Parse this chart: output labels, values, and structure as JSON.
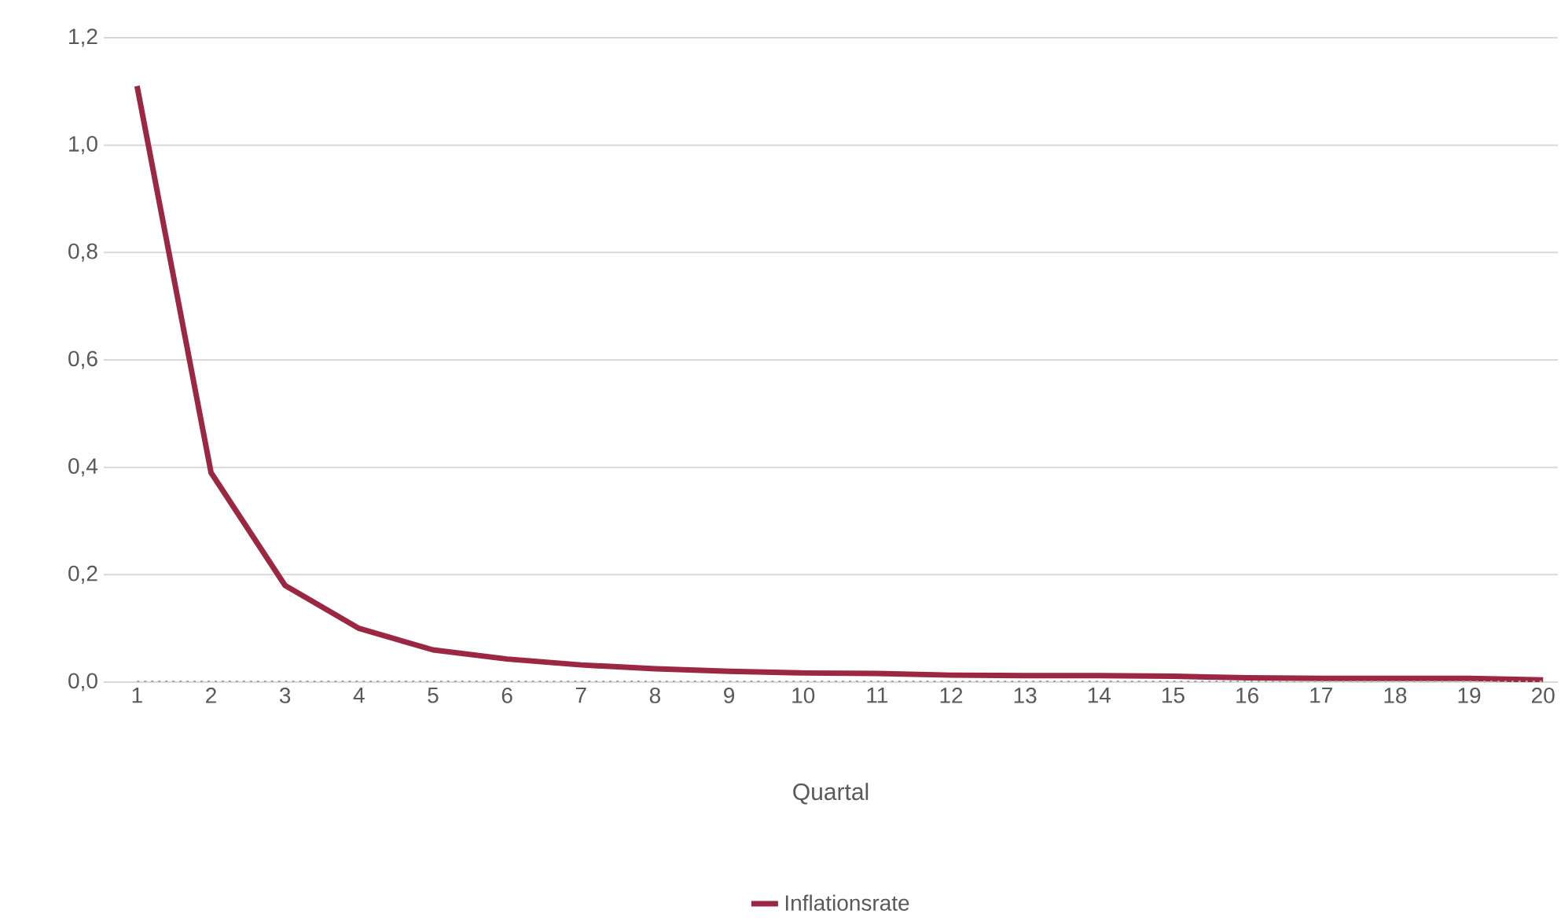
{
  "chart_data": {
    "type": "line",
    "xlabel": "Quartal",
    "categories": [
      "1",
      "2",
      "3",
      "4",
      "5",
      "6",
      "7",
      "8",
      "9",
      "10",
      "11",
      "12",
      "13",
      "14",
      "15",
      "16",
      "17",
      "18",
      "19",
      "20"
    ],
    "series": [
      {
        "name": "Inflationsrate",
        "color": "#9b2743",
        "values": [
          1.11,
          0.39,
          0.18,
          0.1,
          0.06,
          0.043,
          0.032,
          0.025,
          0.02,
          0.017,
          0.016,
          0.013,
          0.012,
          0.012,
          0.011,
          0.008,
          0.007,
          0.007,
          0.007,
          0.004
        ]
      }
    ],
    "ylim": [
      0,
      1.2
    ],
    "yticks": [
      {
        "value": 0,
        "label": "0,0"
      },
      {
        "value": 0.2,
        "label": "0,2"
      },
      {
        "value": 0.4,
        "label": "0,4"
      },
      {
        "value": 0.6,
        "label": "0,6"
      },
      {
        "value": 0.8,
        "label": "0,8"
      },
      {
        "value": 1.0,
        "label": "1,0"
      },
      {
        "value": 1.2,
        "label": "1,2"
      }
    ],
    "ref_lines": [
      {
        "axis": "y",
        "value": 0,
        "color": "#a6a6a6",
        "line_style": "dotted"
      }
    ],
    "grid": "y",
    "legend": "bottom",
    "marker": "none",
    "line_style": "solid"
  }
}
